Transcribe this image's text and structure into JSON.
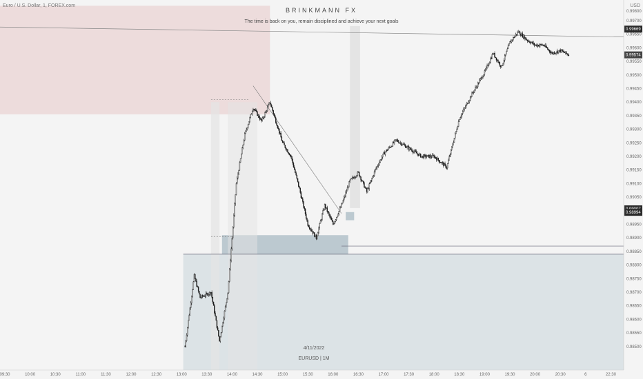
{
  "header": {
    "symbol": "Euro / U.S. Dollar, 1, FOREX.com",
    "brand": "BRINKMANN FX",
    "tagline": "The time is back on you, remain disciplined and achieve your next goals",
    "currency": "USD"
  },
  "footer": {
    "date": "4/11/2022",
    "ticker": "EURUSD | 1M"
  },
  "colors": {
    "background": "#f4f4f4",
    "candle": "#1a1a1a",
    "supply_zone": "#eddcdc",
    "demand_zone": "#d4dde1",
    "demand_zone_strong": "#bcc9d0",
    "session_band": "#e4e4e4",
    "price_tag": "#2a2a2a"
  },
  "chart_data": {
    "type": "candlestick",
    "x_ticks": [
      "09:30",
      "10:00",
      "10:30",
      "11:00",
      "11:30",
      "12:00",
      "12:30",
      "13:00",
      "13:30",
      "14:00",
      "14:30",
      "15:00",
      "15:30",
      "16:00",
      "16:30",
      "17:00",
      "17:30",
      "18:00",
      "18:30",
      "19:00",
      "19:30",
      "20:00",
      "20:30",
      "6",
      "22:30"
    ],
    "y_ticks": [
      "0.99700",
      "0.99650",
      "0.99600",
      "0.99550",
      "0.99500",
      "0.99450",
      "0.99400",
      "0.99350",
      "0.99300",
      "0.99250",
      "0.99200",
      "0.99150",
      "0.99100",
      "0.99050",
      "0.99000",
      "0.98950",
      "0.98900",
      "0.98850",
      "0.98800",
      "0.98750",
      "0.98700",
      "0.98650",
      "0.98600",
      "0.98550",
      "0.98500"
    ],
    "y_range": [
      0.98495,
      0.99785
    ],
    "y_top_label": "0.99800",
    "price_tags": [
      "0.99669",
      "0.99574",
      "0.99007",
      "0.98994"
    ],
    "path_times": [
      "13:04",
      "13:15",
      "13:22",
      "13:35",
      "13:45",
      "13:55",
      "14:05",
      "14:15",
      "14:25",
      "14:35",
      "14:45",
      "15:00",
      "15:10",
      "15:20",
      "15:30",
      "15:40",
      "15:50",
      "16:00",
      "16:10",
      "16:20",
      "16:30",
      "16:40",
      "16:50",
      "17:00",
      "17:15",
      "17:30",
      "17:45",
      "18:00",
      "18:15",
      "18:30",
      "18:45",
      "19:00",
      "19:10",
      "19:20",
      "19:30",
      "19:40",
      "19:50",
      "20:00",
      "20:10",
      "20:20",
      "20:30",
      "20:40"
    ],
    "path_prices": [
      0.985,
      0.9876,
      0.9868,
      0.987,
      0.9852,
      0.987,
      0.991,
      0.9928,
      0.9938,
      0.9933,
      0.994,
      0.9925,
      0.992,
      0.9908,
      0.9895,
      0.989,
      0.9902,
      0.9895,
      0.9902,
      0.9911,
      0.9914,
      0.9907,
      0.9915,
      0.9921,
      0.9926,
      0.9923,
      0.992,
      0.992,
      0.9916,
      0.9934,
      0.9943,
      0.9951,
      0.9958,
      0.9953,
      0.9962,
      0.9966,
      0.9963,
      0.9961,
      0.9961,
      0.9958,
      0.9959,
      0.99574
    ]
  }
}
